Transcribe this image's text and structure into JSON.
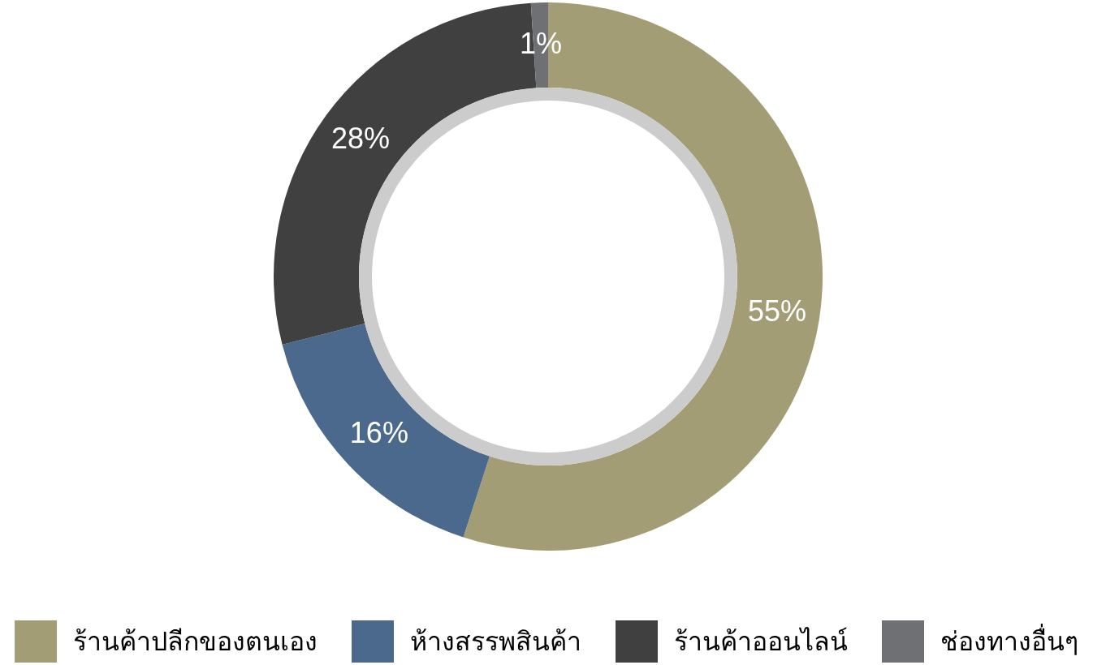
{
  "chart_data": {
    "type": "donut",
    "categories": [
      "ร้านค้าปลีกของตนเอง",
      "ห้างสรรพสินค้า",
      "ร้านค้าออนไลน์",
      "ช่องทางอื่นๆ"
    ],
    "values": [
      55,
      16,
      28,
      1
    ],
    "colors": [
      "#a39d76",
      "#4a698d",
      "#404040",
      "#6f7074"
    ],
    "value_labels": [
      "55%",
      "16%",
      "28%",
      "1%"
    ],
    "legend": "bottom"
  }
}
